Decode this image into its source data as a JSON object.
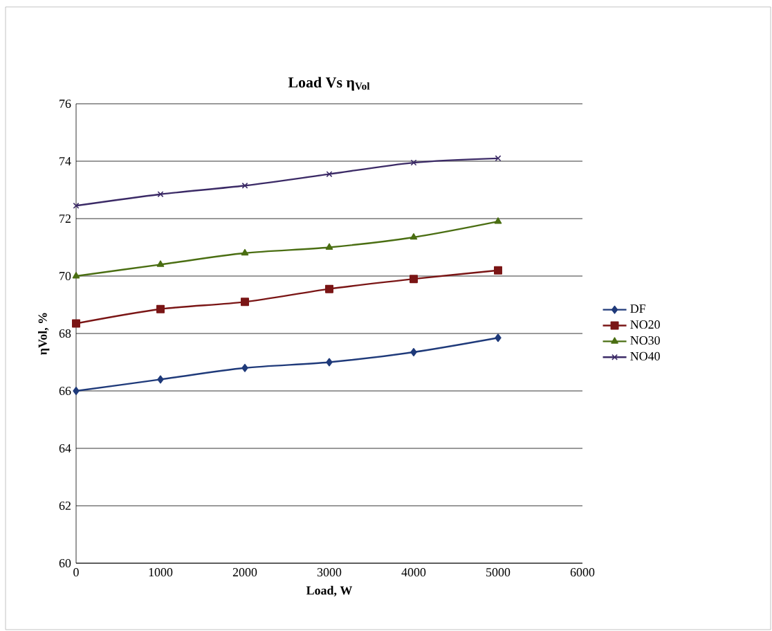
{
  "chart_data": {
    "type": "line",
    "title": "Load Vs η$_{Vol}$",
    "xlabel": "Load, W",
    "ylabel": "ηVol, %",
    "x": [
      0,
      1000,
      2000,
      3000,
      4000,
      5000
    ],
    "xlim": [
      0,
      6000
    ],
    "xticks": [
      0,
      1000,
      2000,
      3000,
      4000,
      5000,
      6000
    ],
    "ylim": [
      60,
      76
    ],
    "yticks": [
      60,
      62,
      64,
      66,
      68,
      70,
      72,
      74,
      76
    ],
    "grid": "y",
    "legend": "right",
    "series": [
      {
        "name": "DF",
        "color": "#1f3a7a",
        "marker": "diamond",
        "values": [
          66.0,
          66.4,
          66.8,
          67.0,
          67.35,
          67.85
        ]
      },
      {
        "name": "NO20",
        "color": "#7a1515",
        "marker": "square",
        "values": [
          68.35,
          68.85,
          69.1,
          69.55,
          69.9,
          70.2
        ]
      },
      {
        "name": "NO30",
        "color": "#4a6e12",
        "marker": "triangle",
        "values": [
          70.0,
          70.4,
          70.8,
          71.0,
          71.35,
          71.9
        ]
      },
      {
        "name": "NO40",
        "color": "#3b2a66",
        "marker": "cross",
        "values": [
          72.45,
          72.85,
          73.15,
          73.55,
          73.95,
          74.1
        ]
      }
    ]
  }
}
